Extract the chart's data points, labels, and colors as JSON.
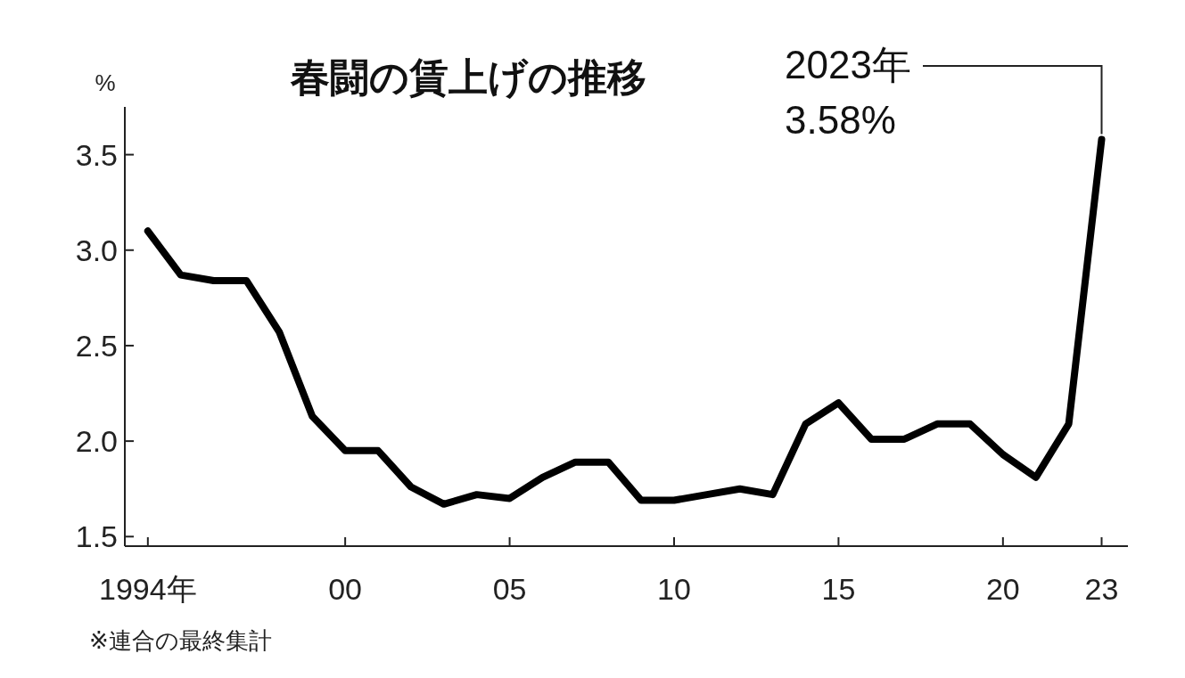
{
  "chart_data": {
    "type": "line",
    "title": "春闘の賃上げの推移",
    "ylabel": "%",
    "x": [
      1994,
      1995,
      1996,
      1997,
      1998,
      1999,
      2000,
      2001,
      2002,
      2003,
      2004,
      2005,
      2006,
      2007,
      2008,
      2009,
      2010,
      2011,
      2012,
      2013,
      2014,
      2015,
      2016,
      2017,
      2018,
      2019,
      2020,
      2021,
      2022,
      2023
    ],
    "series": [
      {
        "color": "#000000",
        "values": [
          3.1,
          2.87,
          2.84,
          2.84,
          2.57,
          2.13,
          1.95,
          1.95,
          1.76,
          1.67,
          1.72,
          1.7,
          1.81,
          1.89,
          1.89,
          1.69,
          1.69,
          1.72,
          1.75,
          1.72,
          2.09,
          2.2,
          2.01,
          2.01,
          2.09,
          2.09,
          1.93,
          1.81,
          2.09,
          3.58
        ]
      }
    ],
    "xlim": [
      1993.3,
      2023.8
    ],
    "xticks": [
      {
        "value": 1994,
        "label": "1994年"
      },
      {
        "value": 2000,
        "label": "00"
      },
      {
        "value": 2005,
        "label": "05"
      },
      {
        "value": 2010,
        "label": "10"
      },
      {
        "value": 2015,
        "label": "15"
      },
      {
        "value": 2020,
        "label": "20"
      },
      {
        "value": 2023,
        "label": "23"
      }
    ],
    "ylim": [
      1.45,
      3.75
    ],
    "yticks": [
      {
        "value": 1.5,
        "label": "1.5"
      },
      {
        "value": 2.0,
        "label": "2.0"
      },
      {
        "value": 2.5,
        "label": "2.5"
      },
      {
        "value": 3.0,
        "label": "3.0"
      },
      {
        "value": 3.5,
        "label": "3.5"
      }
    ],
    "grid": false,
    "marker": "none",
    "line_style": "solid",
    "annotations": [
      {
        "text": "2023年\n3.58%",
        "x": 2023,
        "y": 3.58
      },
      "※連合の最終集計"
    ]
  }
}
